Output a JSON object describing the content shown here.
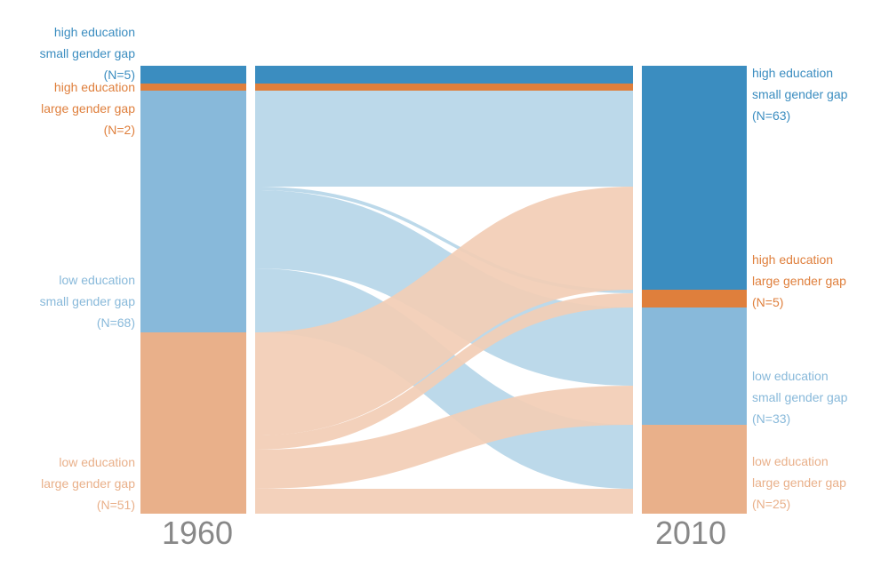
{
  "years": {
    "left": "1960",
    "right": "2010"
  },
  "colors": {
    "high_small": "#3b8dc0",
    "high_large": "#df7f3c",
    "low_small": "#88b9da",
    "low_large": "#e9b08a",
    "flow_blue": "#b7d6e8",
    "flow_orange": "#f2ceb6"
  },
  "categories": [
    "high_small",
    "high_large",
    "low_small",
    "low_large"
  ],
  "left_nodes": [
    {
      "key": "high_small",
      "lines": [
        "high education",
        "small gender gap",
        "(N=5)"
      ],
      "count": 5
    },
    {
      "key": "high_large",
      "lines": [
        "high education",
        "large gender gap",
        "(N=2)"
      ],
      "count": 2
    },
    {
      "key": "low_small",
      "lines": [
        "low education",
        "small gender gap",
        "(N=68)"
      ],
      "count": 68
    },
    {
      "key": "low_large",
      "lines": [
        "low education",
        "large gender gap",
        "(N=51)"
      ],
      "count": 51
    }
  ],
  "right_nodes": [
    {
      "key": "high_small",
      "lines": [
        "high education",
        "small gender gap",
        "(N=63)"
      ],
      "count": 63
    },
    {
      "key": "high_large",
      "lines": [
        "high education",
        "large gender gap",
        "(N=5)"
      ],
      "count": 5
    },
    {
      "key": "low_small",
      "lines": [
        "low education",
        "small gender gap",
        "(N=33)"
      ],
      "count": 33
    },
    {
      "key": "low_large",
      "lines": [
        "low education",
        "large gender gap",
        "(N=25)"
      ],
      "count": 25
    }
  ],
  "flows": [
    {
      "from": "high_small",
      "to": "high_small",
      "value": 5
    },
    {
      "from": "high_large",
      "to": "high_small",
      "value": 2
    },
    {
      "from": "low_small",
      "to": "high_small",
      "value": 27
    },
    {
      "from": "low_small",
      "to": "high_large",
      "value": 1
    },
    {
      "from": "low_small",
      "to": "low_small",
      "value": 22
    },
    {
      "from": "low_small",
      "to": "low_large",
      "value": 18
    },
    {
      "from": "low_large",
      "to": "high_small",
      "value": 29
    },
    {
      "from": "low_large",
      "to": "high_large",
      "value": 4
    },
    {
      "from": "low_large",
      "to": "low_small",
      "value": 11
    },
    {
      "from": "low_large",
      "to": "low_large",
      "value": 7
    }
  ]
}
